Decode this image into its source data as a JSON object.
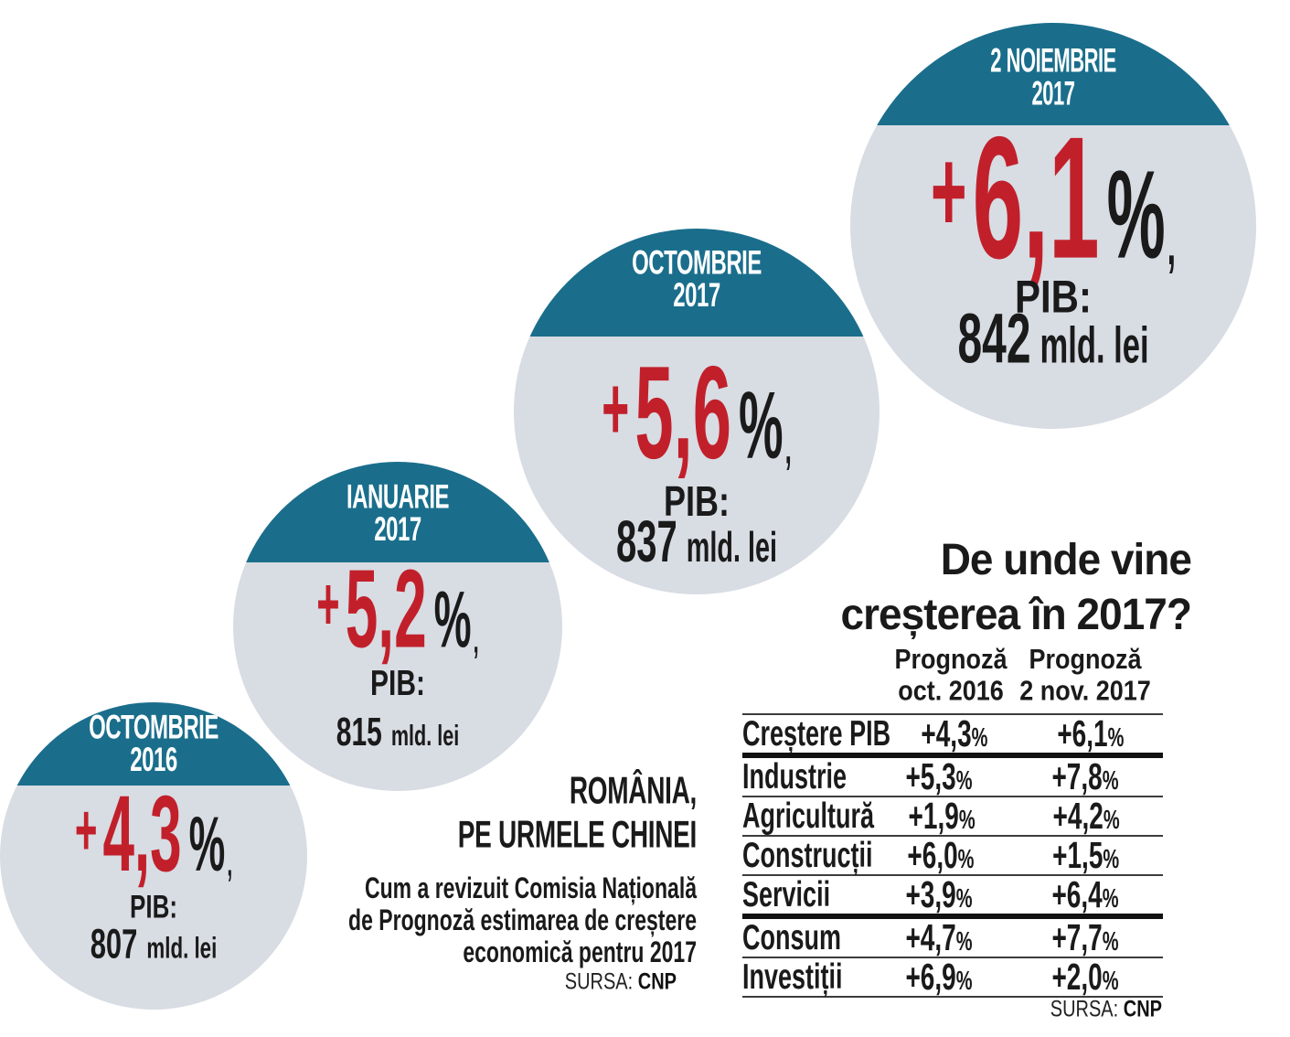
{
  "colors": {
    "teal": "#1A6E8C",
    "circle_gray": "#D8DCE3",
    "red": "#C1202B",
    "text_black": "#1A1A1A"
  },
  "symbols": {
    "plus": "+",
    "percent": "%",
    "comma": ","
  },
  "labels": {
    "pib": "PIB:",
    "pib_unit": "mld. lei"
  },
  "circles": [
    {
      "date_line1": "OCTOMBRIE",
      "date_line2": "2016",
      "growth": "4,3",
      "pib": "807"
    },
    {
      "date_line1": "IANUARIE",
      "date_line2": "2017",
      "growth": "5,2",
      "pib": "815"
    },
    {
      "date_line1": "OCTOMBRIE",
      "date_line2": "2017",
      "growth": "5,6",
      "pib": "837"
    },
    {
      "date_line1": "2 NOIEMBRIE",
      "date_line2": "2017",
      "growth": "6,1",
      "pib": "842"
    }
  ],
  "headline": {
    "line1": "ROMÂNIA,",
    "line2": "PE URMELE CHINEI",
    "subtitle_lines": [
      "Cum a revizuit Comisia Națională",
      "de Prognoză estimarea de creștere",
      "economică pentru 2017"
    ],
    "source_label": "SURSA:",
    "source_value": "CNP"
  },
  "table": {
    "title_line1": "De unde vine",
    "title_line2": "creșterea în 2017?",
    "col1_header_line1": "Prognoză",
    "col1_header_line2": "oct. 2016",
    "col2_header_line1": "Prognoză",
    "col2_header_line2": "2 nov. 2017",
    "rows": [
      {
        "label": "Creștere PIB",
        "col1": "+4,3",
        "col2": "+6,1"
      },
      {
        "label": "Industrie",
        "col1": "+5,3",
        "col2": "+7,8"
      },
      {
        "label": "Agricultură",
        "col1": "+1,9",
        "col2": "+4,2"
      },
      {
        "label": "Construcții",
        "col1": "+6,0",
        "col2": "+1,5"
      },
      {
        "label": "Servicii",
        "col1": "+3,9",
        "col2": "+6,4"
      },
      {
        "label": "Consum",
        "col1": "+4,7",
        "col2": "+7,7"
      },
      {
        "label": "Investiții",
        "col1": "+6,9",
        "col2": "+2,0"
      }
    ],
    "source_label": "SURSA:",
    "source_value": "CNP"
  },
  "chart_data": [
    {
      "type": "line",
      "title": "ROMÂNIA, PE URMELE CHINEI — Cum a revizuit Comisia Națională de Prognoză estimarea de creștere economică pentru 2017",
      "x": [
        "Octombrie 2016",
        "Ianuarie 2017",
        "Octombrie 2017",
        "2 Noiembrie 2017"
      ],
      "series": [
        {
          "name": "Creștere PIB estimată (%)",
          "values": [
            4.3,
            5.2,
            5.6,
            6.1
          ]
        },
        {
          "name": "PIB (mld. lei)",
          "values": [
            807,
            815,
            837,
            842
          ]
        }
      ],
      "source": "CNP"
    },
    {
      "type": "table",
      "title": "De unde vine creșterea în 2017?",
      "columns": [
        "",
        "Prognoză oct. 2016",
        "Prognoză 2 nov. 2017"
      ],
      "rows": [
        [
          "Creștere PIB",
          "+4,3%",
          "+6,1%"
        ],
        [
          "Industrie",
          "+5,3%",
          "+7,8%"
        ],
        [
          "Agricultură",
          "+1,9%",
          "+4,2%"
        ],
        [
          "Construcții",
          "+6,0%",
          "+1,5%"
        ],
        [
          "Servicii",
          "+3,9%",
          "+6,4%"
        ],
        [
          "Consum",
          "+4,7%",
          "+7,7%"
        ],
        [
          "Investiții",
          "+6,9%",
          "+2,0%"
        ]
      ],
      "source": "CNP"
    }
  ]
}
